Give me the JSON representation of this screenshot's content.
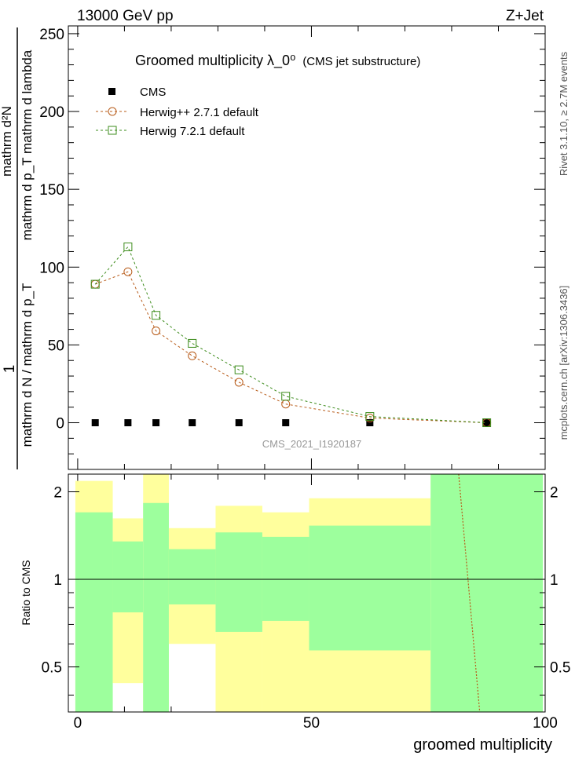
{
  "header": {
    "left": "13000 GeV pp",
    "right": "Z+Jet"
  },
  "side_labels": {
    "rivet": "Rivet 3.1.10, ≥ 2.7M events",
    "mcplots": "mcplots.cern.ch [arXiv:1306.3436]"
  },
  "chart_data": {
    "type": "line",
    "title": "Groomed multiplicity  λ_0⁰",
    "subtitle": "(CMS jet substructure)",
    "watermark": "CMS_2021_I1920187",
    "xlabel": "groomed multiplicity",
    "ylabel_numerator": "mathrm d²N",
    "ylabel_denominator": "mathrm d p_T mathrm d lambda",
    "ylabel_prefactor": "1",
    "ylabel_bottom": "mathrm d N / mathrm d p_T",
    "ratio_ylabel": "Ratio to CMS",
    "xlim": [
      -2,
      100
    ],
    "ylim": [
      -30,
      255
    ],
    "x_ticks": [
      0,
      50,
      100
    ],
    "y_ticks": [
      0,
      50,
      100,
      150,
      200,
      250
    ],
    "ratio_ylim": [
      0.35,
      2.3
    ],
    "ratio_ticks": [
      0.5,
      1,
      2
    ],
    "legend_position": "top-left",
    "legend": [
      "CMS",
      "Herwig++ 2.7.1 default",
      "Herwig 7.2.1 default"
    ],
    "series": [
      {
        "name": "CMS",
        "marker": "filled-square",
        "color": "#000000",
        "x": [
          3.75,
          10.75,
          16.75,
          24.5,
          34.5,
          44.5,
          62.5,
          87.5
        ],
        "y": [
          0,
          0,
          0,
          0,
          0,
          0,
          0,
          0
        ]
      },
      {
        "name": "Herwig++ 2.7.1 default",
        "marker": "open-circle",
        "color": "#b85c1a",
        "x": [
          3.75,
          10.75,
          16.75,
          24.5,
          34.5,
          44.5,
          62.5,
          87.5
        ],
        "y": [
          89,
          97,
          59,
          43,
          26,
          12,
          3,
          0
        ]
      },
      {
        "name": "Herwig 7.2.1 default",
        "marker": "open-square",
        "color": "#3d8c1c",
        "x": [
          3.75,
          10.75,
          16.75,
          24.5,
          34.5,
          44.5,
          62.5,
          87.5
        ],
        "y": [
          89,
          113,
          69,
          51,
          34,
          17,
          4,
          0
        ]
      }
    ],
    "ratio_bands": [
      {
        "x0": -0.5,
        "x1": 7.5,
        "yellow": [
          0.35,
          2.18
        ],
        "green": [
          0.35,
          1.7
        ]
      },
      {
        "x0": 7.5,
        "x1": 14,
        "yellow": [
          0.44,
          1.62
        ],
        "green": [
          0.77,
          1.35
        ]
      },
      {
        "x0": 14,
        "x1": 19.5,
        "yellow": [
          0.35,
          2.3
        ],
        "green": [
          0.35,
          1.83
        ]
      },
      {
        "x0": 19.5,
        "x1": 29.5,
        "yellow": [
          0.6,
          1.5
        ],
        "green": [
          0.82,
          1.27
        ]
      },
      {
        "x0": 29.5,
        "x1": 39.5,
        "yellow": [
          0.35,
          1.79
        ],
        "green": [
          0.66,
          1.45
        ]
      },
      {
        "x0": 39.5,
        "x1": 49.5,
        "yellow": [
          0.35,
          1.7
        ],
        "green": [
          0.72,
          1.4
        ]
      },
      {
        "x0": 49.5,
        "x1": 75.5,
        "yellow": [
          0.35,
          1.9
        ],
        "green": [
          0.57,
          1.53
        ]
      },
      {
        "x0": 75.5,
        "x1": 99.5,
        "yellow": [
          0.35,
          2.3
        ],
        "green": [
          0.35,
          2.3
        ]
      }
    ],
    "ratio_curve": {
      "x": [
        81.5,
        86
      ],
      "y": [
        2.3,
        0.35
      ],
      "color": "#b85c1a"
    },
    "colors": {
      "band_green": "#9dff9d",
      "band_yellow": "#ffff9d"
    }
  }
}
